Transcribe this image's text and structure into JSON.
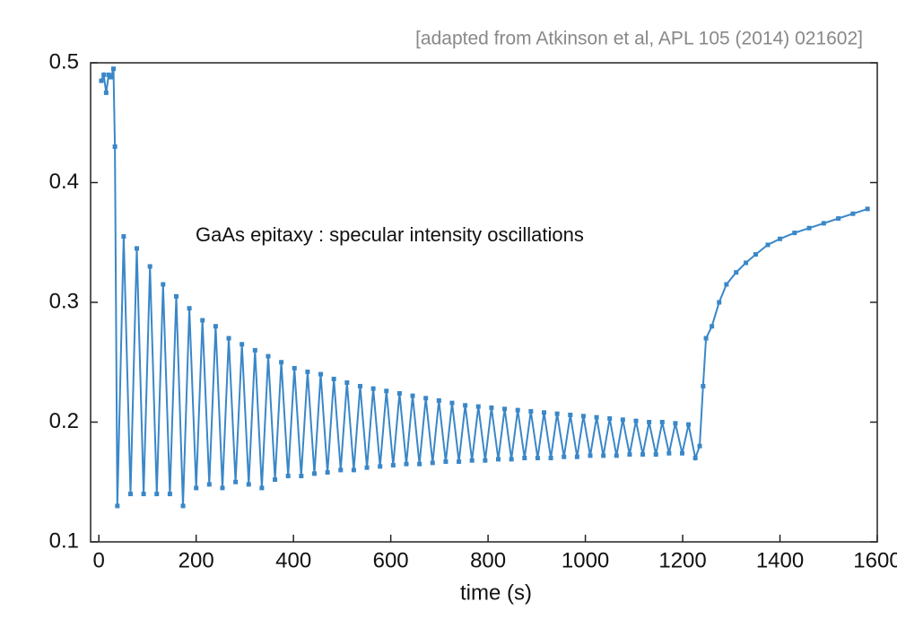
{
  "chart_data": {
    "type": "line",
    "source": "[adapted from Atkinson et al, APL 105 (2014) 021602]",
    "annotation": "GaAs epitaxy : specular intensity oscillations",
    "x_label": "time (s)",
    "color": "#3a87c8",
    "xlim": [
      -17,
      1600
    ],
    "ylim": [
      0.1,
      0.5
    ],
    "xticks": [
      0,
      200,
      400,
      600,
      800,
      1000,
      1200,
      1400,
      1600
    ],
    "yticks": [
      0.1,
      0.2,
      0.3,
      0.4,
      0.5
    ],
    "x": [
      5,
      10,
      15,
      20,
      25,
      30,
      33,
      38,
      51,
      65,
      78,
      92,
      105,
      119,
      132,
      146,
      159,
      173,
      186,
      200,
      213,
      227,
      240,
      254,
      267,
      281,
      294,
      308,
      321,
      335,
      348,
      362,
      375,
      389,
      402,
      416,
      429,
      443,
      456,
      470,
      483,
      497,
      510,
      524,
      537,
      551,
      564,
      578,
      591,
      605,
      618,
      632,
      645,
      659,
      672,
      686,
      699,
      713,
      726,
      740,
      753,
      767,
      780,
      794,
      807,
      821,
      834,
      848,
      861,
      875,
      888,
      902,
      915,
      929,
      942,
      956,
      969,
      983,
      996,
      1010,
      1023,
      1037,
      1050,
      1064,
      1077,
      1091,
      1104,
      1118,
      1131,
      1145,
      1158,
      1172,
      1185,
      1199,
      1212,
      1226,
      1235,
      1242,
      1248,
      1260,
      1275,
      1290,
      1310,
      1330,
      1350,
      1375,
      1400,
      1430,
      1460,
      1490,
      1520,
      1550,
      1580
    ],
    "values": [
      0.485,
      0.49,
      0.475,
      0.49,
      0.488,
      0.495,
      0.43,
      0.13,
      0.355,
      0.14,
      0.345,
      0.14,
      0.33,
      0.14,
      0.315,
      0.14,
      0.305,
      0.13,
      0.295,
      0.145,
      0.285,
      0.148,
      0.28,
      0.145,
      0.27,
      0.15,
      0.265,
      0.148,
      0.26,
      0.145,
      0.255,
      0.152,
      0.25,
      0.155,
      0.245,
      0.155,
      0.242,
      0.157,
      0.24,
      0.158,
      0.236,
      0.16,
      0.233,
      0.16,
      0.23,
      0.162,
      0.228,
      0.163,
      0.226,
      0.164,
      0.224,
      0.165,
      0.222,
      0.165,
      0.22,
      0.166,
      0.218,
      0.167,
      0.216,
      0.167,
      0.214,
      0.168,
      0.213,
      0.168,
      0.212,
      0.169,
      0.211,
      0.169,
      0.21,
      0.17,
      0.209,
      0.17,
      0.208,
      0.17,
      0.207,
      0.171,
      0.206,
      0.171,
      0.205,
      0.172,
      0.204,
      0.172,
      0.203,
      0.172,
      0.202,
      0.173,
      0.201,
      0.173,
      0.2,
      0.173,
      0.2,
      0.174,
      0.199,
      0.174,
      0.198,
      0.17,
      0.18,
      0.23,
      0.27,
      0.28,
      0.3,
      0.315,
      0.325,
      0.333,
      0.34,
      0.348,
      0.353,
      0.358,
      0.362,
      0.366,
      0.37,
      0.374,
      0.378
    ]
  }
}
